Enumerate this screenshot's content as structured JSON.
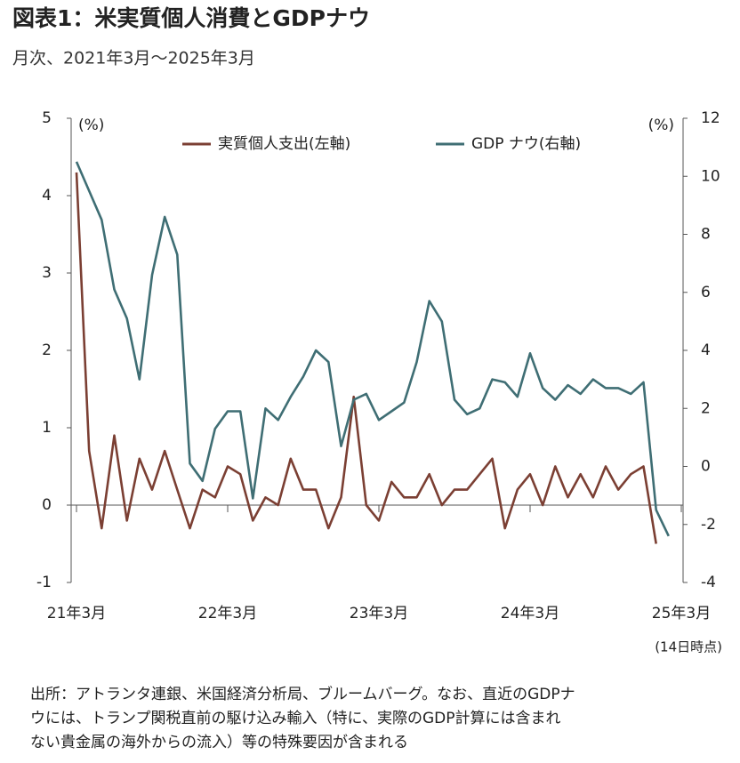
{
  "chart_data": {
    "type": "line",
    "title": "図表1：米実質個人消費とGDPナウ",
    "subtitle": "月次、2021年3月～2025年3月",
    "ylabel": "(%)",
    "y2label": "(%)",
    "annotation": "(14日時点)",
    "source": [
      "出所：アトランタ連銀、米国経済分析局、ブルームバーグ。なお、直近のGDPナ",
      "ウには、トランプ関税直前の駆け込み輸入（特に、実際のGDP計算には含まれ",
      "ない貴金属の海外からの流入）等の特殊要因が含まれる"
    ],
    "categories": [
      "21年3月",
      null,
      null,
      null,
      null,
      null,
      null,
      null,
      null,
      null,
      null,
      null,
      "22年3月",
      null,
      null,
      null,
      null,
      null,
      null,
      null,
      null,
      null,
      null,
      null,
      "23年3月",
      null,
      null,
      null,
      null,
      null,
      null,
      null,
      null,
      null,
      null,
      null,
      "24年3月",
      null,
      null,
      null,
      null,
      null,
      null,
      null,
      null,
      null,
      null,
      null,
      "25年3月"
    ],
    "series": [
      {
        "name": "実質個人支出(左軸)",
        "color": "#7b3f33",
        "axis": "y",
        "values": [
          4.3,
          0.7,
          -0.3,
          0.9,
          -0.2,
          0.6,
          0.2,
          0.7,
          0.2,
          -0.3,
          0.2,
          0.1,
          0.5,
          0.4,
          -0.2,
          0.1,
          0.0,
          0.6,
          0.2,
          0.2,
          -0.3,
          0.1,
          1.4,
          0.0,
          -0.2,
          0.3,
          0.1,
          0.1,
          0.4,
          0.0,
          0.2,
          0.2,
          0.4,
          0.6,
          -0.3,
          0.2,
          0.4,
          0.0,
          0.5,
          0.1,
          0.4,
          0.1,
          0.5,
          0.2,
          0.4,
          0.5,
          -0.5,
          null,
          null
        ]
      },
      {
        "name": "GDP ナウ(右軸)",
        "color": "#3f6e74",
        "axis": "y2",
        "values": [
          10.5,
          9.5,
          8.5,
          6.1,
          5.1,
          3.0,
          6.6,
          8.6,
          7.3,
          0.1,
          -0.5,
          1.3,
          1.9,
          1.9,
          -1.1,
          2.0,
          1.6,
          2.4,
          3.1,
          4.0,
          3.6,
          0.7,
          2.3,
          2.5,
          1.6,
          1.9,
          2.2,
          3.6,
          5.7,
          5.0,
          2.3,
          1.8,
          2.0,
          3.0,
          2.9,
          2.4,
          3.9,
          2.7,
          2.3,
          2.8,
          2.5,
          3.0,
          2.7,
          2.7,
          2.5,
          2.9,
          -1.5,
          -2.4,
          null
        ]
      }
    ],
    "ylim": [
      -1,
      5
    ],
    "yticks": [
      -1,
      0,
      1,
      2,
      3,
      4,
      5
    ],
    "y2lim": [
      -4,
      12
    ],
    "y2ticks": [
      -4,
      -2,
      0,
      2,
      4,
      6,
      8,
      10,
      12
    ],
    "legend": "top",
    "grid": false
  }
}
